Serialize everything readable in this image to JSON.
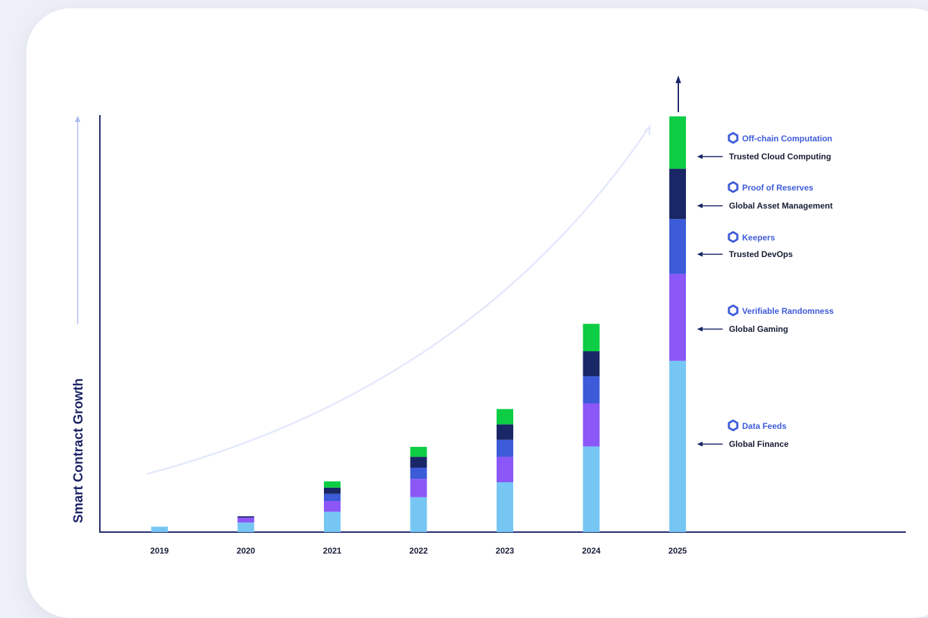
{
  "colors": {
    "data_feeds": "#76c6f4",
    "verifiable_randomness": "#8b57f7",
    "keepers": "#3b5bd8",
    "proof_of_reserves": "#1a2766",
    "offchain_computation": "#0ccd43",
    "axis": "#1c2566",
    "icon": "#3d5bd9"
  },
  "chart_data": {
    "type": "bar",
    "stacked": true,
    "title": "",
    "xlabel": "",
    "ylabel": "Smart Contract Growth",
    "categories": [
      "2019",
      "2020",
      "2021",
      "2022",
      "2023",
      "2024",
      "2025"
    ],
    "ylim": [
      0,
      100
    ],
    "series": [
      {
        "name": "Data Feeds",
        "color": "#76c6f4",
        "values": [
          1.3,
          2.3,
          4.9,
          8.4,
          12.0,
          20.6,
          41.2
        ]
      },
      {
        "name": "Verifiable Randomness",
        "color": "#8b57f7",
        "values": [
          0.0,
          1.2,
          2.6,
          4.4,
          6.1,
          10.4,
          20.9
        ]
      },
      {
        "name": "Keepers",
        "color": "#3b5bd8",
        "values": [
          0.0,
          0.0,
          1.7,
          2.7,
          4.1,
          6.5,
          13.2
        ]
      },
      {
        "name": "Proof of Reserves",
        "color": "#1a2766",
        "values": [
          0.0,
          0.3,
          1.5,
          2.6,
          3.7,
          6.0,
          12.1
        ]
      },
      {
        "name": "Off-chain Computation",
        "color": "#0ccd43",
        "values": [
          0.0,
          0.0,
          1.5,
          2.4,
          3.7,
          6.6,
          12.6
        ]
      }
    ]
  },
  "legend": [
    {
      "product": "Off-chain Computation",
      "use_case": "Trusted Cloud Computing"
    },
    {
      "product": "Proof of Reserves",
      "use_case": "Global Asset Management"
    },
    {
      "product": "Keepers",
      "use_case": "Trusted DevOps"
    },
    {
      "product": "Verifiable Randomness",
      "use_case": "Global Gaming"
    },
    {
      "product": "Data Feeds",
      "use_case": "Global Finance"
    }
  ]
}
